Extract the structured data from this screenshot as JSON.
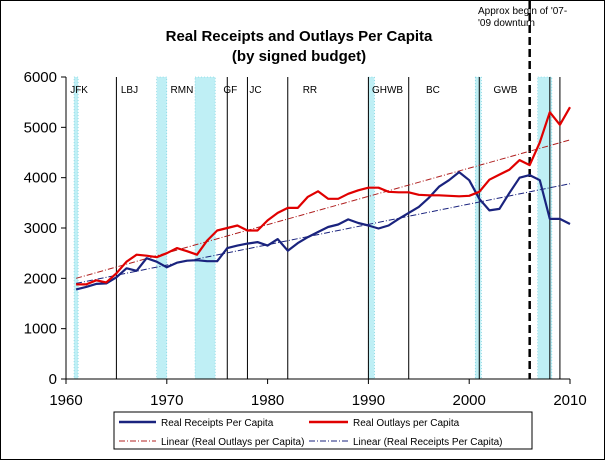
{
  "chart_data": {
    "type": "line",
    "title_lines": [
      "Real Receipts and Outlays Per Capita",
      "(by signed budget)"
    ],
    "xlabel": "",
    "ylabel": "",
    "xlim": [
      1960,
      2010
    ],
    "ylim": [
      0,
      6000
    ],
    "x_ticks": [
      1960,
      1970,
      1980,
      1990,
      2000,
      2010
    ],
    "y_ticks": [
      0,
      1000,
      2000,
      3000,
      4000,
      5000,
      6000
    ],
    "grid": false,
    "legend_position": "bottom",
    "series": [
      {
        "name": "Real Receipts Per Capita",
        "color": "#1a237e",
        "style": "solid",
        "x": [
          1961,
          1962,
          1963,
          1964,
          1965,
          1966,
          1967,
          1968,
          1969,
          1970,
          1971,
          1972,
          1973,
          1974,
          1975,
          1976,
          1977,
          1978,
          1979,
          1980,
          1981,
          1982,
          1983,
          1984,
          1985,
          1986,
          1987,
          1988,
          1989,
          1990,
          1991,
          1992,
          1993,
          1994,
          1995,
          1996,
          1997,
          1998,
          1999,
          2000,
          2001,
          2002,
          2003,
          2004,
          2005,
          2006,
          2007,
          2008,
          2009,
          2010
        ],
        "y": [
          1780,
          1830,
          1890,
          1900,
          2020,
          2200,
          2150,
          2400,
          2330,
          2220,
          2310,
          2350,
          2360,
          2340,
          2340,
          2600,
          2650,
          2690,
          2720,
          2650,
          2780,
          2550,
          2700,
          2820,
          2920,
          3020,
          3070,
          3170,
          3100,
          3050,
          2990,
          3050,
          3180,
          3300,
          3420,
          3600,
          3820,
          3950,
          4110,
          3950,
          3580,
          3350,
          3380,
          3700,
          4000,
          4050,
          3950,
          3180,
          3180,
          3080
        ]
      },
      {
        "name": "Real Outlays per Capita",
        "color": "#e00000",
        "style": "solid",
        "x": [
          1961,
          1962,
          1963,
          1964,
          1965,
          1966,
          1967,
          1968,
          1969,
          1970,
          1971,
          1972,
          1973,
          1974,
          1975,
          1976,
          1977,
          1978,
          1979,
          1980,
          1981,
          1982,
          1983,
          1984,
          1985,
          1986,
          1987,
          1988,
          1989,
          1990,
          1991,
          1992,
          1993,
          1994,
          1995,
          1996,
          1997,
          1998,
          1999,
          2000,
          2001,
          2002,
          2003,
          2004,
          2005,
          2006,
          2007,
          2008,
          2009,
          2010
        ],
        "y": [
          1880,
          1880,
          1960,
          1920,
          2100,
          2330,
          2470,
          2450,
          2420,
          2500,
          2600,
          2540,
          2470,
          2750,
          2950,
          3000,
          3050,
          2950,
          2950,
          3150,
          3300,
          3400,
          3400,
          3620,
          3730,
          3580,
          3580,
          3680,
          3750,
          3800,
          3800,
          3720,
          3710,
          3710,
          3660,
          3650,
          3650,
          3640,
          3630,
          3640,
          3720,
          3960,
          4060,
          4160,
          4350,
          4250,
          4700,
          5300,
          5050,
          5400
        ]
      },
      {
        "name": "Linear (Real Outlays per Capita)",
        "color": "#b02020",
        "style": "dashdot",
        "x": [
          1961,
          2010
        ],
        "y": [
          2000,
          4750
        ]
      },
      {
        "name": "Linear (Real Receipts Per Capita)",
        "color": "#1a237e",
        "style": "dashdot",
        "x": [
          1961,
          2010
        ],
        "y": [
          1900,
          3880
        ]
      }
    ],
    "presidents": [
      {
        "label": "JFK",
        "x": 1961.3
      },
      {
        "label": "LBJ",
        "x": 1966.3
      },
      {
        "label": "RMN",
        "x": 1971.5
      },
      {
        "label": "GF",
        "x": 1976.3
      },
      {
        "label": "JC",
        "x": 1978.8
      },
      {
        "label": "RR",
        "x": 1984.2
      },
      {
        "label": "GHWB",
        "x": 1991.9
      },
      {
        "label": "BC",
        "x": 1996.4
      },
      {
        "label": "GWB",
        "x": 2003.6
      }
    ],
    "term_lines": [
      1965,
      1976,
      1978,
      1982,
      1990,
      1994,
      2001,
      2008,
      2009
    ],
    "recessions": [
      [
        1960.8,
        1961.2
      ],
      [
        1969.0,
        1970.0
      ],
      [
        1972.8,
        1974.8
      ],
      [
        1990.0,
        1990.6
      ],
      [
        2000.6,
        2001.2
      ],
      [
        2006.8,
        2008.2
      ]
    ],
    "annotation": {
      "lines": [
        "Approx begin of '07-",
        "'09 downturn"
      ],
      "x": 2006
    }
  }
}
